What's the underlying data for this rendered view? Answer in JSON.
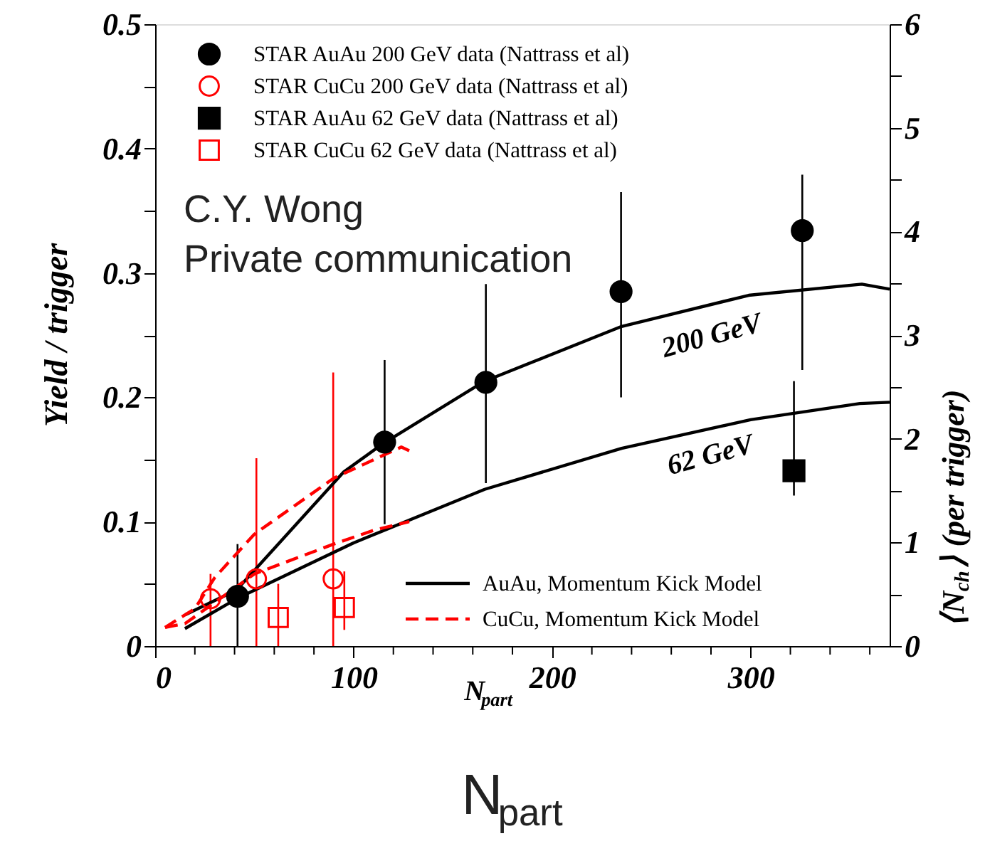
{
  "chart_data": {
    "type": "scatter",
    "xlabel": "N$_{part}$",
    "ylabel": "Yield / trigger",
    "y2label": "⟨N$_{ch}$⟩ (per trigger)",
    "xlim": [
      0,
      370
    ],
    "ylim": [
      0,
      0.5
    ],
    "y2lim": [
      0,
      6
    ],
    "xticks": [
      0,
      {
        "value": 20,
        "label": null
      },
      {
        "value": 40,
        "label": null
      },
      {
        "value": 60,
        "label": null
      },
      {
        "value": 80,
        "label": null
      },
      100,
      {
        "value": 120,
        "label": null
      },
      {
        "value": 140,
        "label": null
      },
      {
        "value": 160,
        "label": null
      },
      {
        "value": 180,
        "label": null
      },
      200,
      {
        "value": 220,
        "label": null
      },
      {
        "value": 240,
        "label": null
      },
      {
        "value": 260,
        "label": null
      },
      {
        "value": 280,
        "label": null
      },
      300,
      {
        "value": 320,
        "label": null
      },
      {
        "value": 340,
        "label": null
      },
      {
        "value": 360,
        "label": null
      }
    ],
    "yticks": [
      0,
      {
        "value": 0.05,
        "label": null
      },
      0.1,
      {
        "value": 0.15,
        "label": null
      },
      0.2,
      {
        "value": 0.25,
        "label": null
      },
      0.3,
      {
        "value": 0.35,
        "label": null
      },
      0.4,
      {
        "value": 0.45,
        "label": null
      },
      0.5
    ],
    "y2ticks": [
      0,
      {
        "value": 0.5,
        "label": null
      },
      1,
      {
        "value": 1.5,
        "label": null
      },
      2,
      {
        "value": 2.5,
        "label": null
      },
      3,
      {
        "value": 3.5,
        "label": null
      },
      4,
      {
        "value": 4.5,
        "label": null
      },
      5,
      {
        "value": 5.5,
        "label": null
      },
      6
    ],
    "grid": false,
    "legend": "left",
    "series": [
      {
        "name": "STAR AuAu 200 GeV data (Nattrass et al)",
        "color": "#000000",
        "marker": "circle",
        "x": [
          41.5,
          115.6,
          166.6,
          234.7,
          326
        ],
        "values": [
          0.04,
          0.164,
          0.212,
          0.285,
          0.334
        ],
        "errors": [
          [
            0,
            0.082
          ],
          [
            0.098,
            0.23
          ],
          [
            0.131,
            0.291
          ],
          [
            0.2,
            0.365
          ],
          [
            0.222,
            0.379
          ]
        ]
      },
      {
        "name": "STAR CuCu 200 GeV data (Nattrass et al)",
        "color": "#ff0000",
        "marker": "circle",
        "x": [
          27.9,
          51,
          89.7
        ],
        "values": [
          0.038,
          0.054,
          0.054
        ],
        "errors": [
          [
            0,
            0.058
          ],
          [
            0,
            0.151
          ],
          [
            0,
            0.22
          ]
        ]
      },
      {
        "name": "STAR AuAu 62 GeV data (Nattrass et al)",
        "color": "#000000",
        "marker": "square",
        "x": [
          321.8
        ],
        "values": [
          0.141
        ],
        "errors": [
          [
            0.121,
            0.213
          ]
        ]
      },
      {
        "name": "STAR CuCu 62 GeV data (Nattrass et al)",
        "color": "#ff0000",
        "marker": "square",
        "x": [
          62,
          95.3
        ],
        "values": [
          0.023,
          0.031
        ],
        "errors": [
          [
            0,
            0.05
          ],
          [
            0.013,
            0.06
          ]
        ]
      },
      {
        "type": "line",
        "name": "AuAu, Momentum Kick Model",
        "color": "#000000",
        "line_style": "solid",
        "x": [
          15,
          41,
          95,
          115,
          166,
          235,
          299,
          356,
          370
        ],
        "values": [
          0.025,
          0.045,
          0.14,
          0.163,
          0.213,
          0.257,
          0.282,
          0.291,
          0.287
        ]
      },
      {
        "type": "line",
        "name": "CuCu, Momentum Kick Model",
        "color": "#ff0000",
        "line_style": "dashed",
        "x": [
          5,
          20,
          30,
          50,
          90,
          124,
          128
        ],
        "values": [
          0.015,
          0.03,
          0.055,
          0.09,
          0.135,
          0.16,
          0.157
        ]
      },
      {
        "type": "line",
        "color": "#000000",
        "line_style": "solid",
        "x": [
          15,
          41,
          100,
          166,
          235,
          300,
          355,
          370
        ],
        "values": [
          0.014,
          0.038,
          0.083,
          0.126,
          0.159,
          0.182,
          0.195,
          0.196
        ]
      },
      {
        "type": "line",
        "color": "#ff0000",
        "line_style": "dashed",
        "x": [
          5,
          15,
          30,
          50,
          90,
          110,
          128
        ],
        "values": [
          0.015,
          0.018,
          0.035,
          0.058,
          0.082,
          0.093,
          0.1
        ]
      }
    ],
    "annotations": [
      "200 GeV",
      "62 GeV",
      "C.Y. Wong",
      "Private communication",
      "N$_{part}$"
    ]
  }
}
